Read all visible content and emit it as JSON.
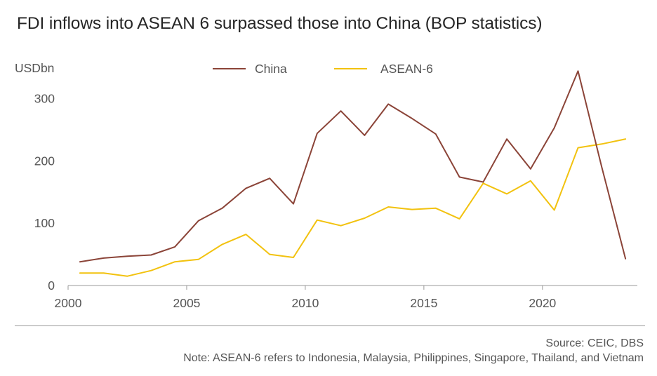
{
  "chart_data": {
    "type": "line",
    "title": "FDI inflows into ASEAN 6 surpassed those into China (BOP statistics)",
    "ylabel": "USDbn",
    "xlabel": "",
    "x": [
      2000,
      2001,
      2002,
      2003,
      2004,
      2005,
      2006,
      2007,
      2008,
      2009,
      2010,
      2011,
      2012,
      2013,
      2014,
      2015,
      2016,
      2017,
      2018,
      2019,
      2020,
      2021,
      2022,
      2023
    ],
    "x_ticks": [
      "2000",
      "2005",
      "2010",
      "2015",
      "2020"
    ],
    "y_ticks": [
      "0",
      "100",
      "200",
      "300"
    ],
    "ylim": [
      0,
      350
    ],
    "xlim": [
      2000,
      2023
    ],
    "grid": false,
    "legend": "top",
    "series": [
      {
        "name": "China",
        "color": "#8b4438",
        "values": [
          38,
          44,
          47,
          49,
          62,
          104,
          124,
          156,
          172,
          131,
          244,
          280,
          241,
          291,
          268,
          243,
          174,
          166,
          235,
          187,
          253,
          344,
          190,
          43
        ]
      },
      {
        "name": "ASEAN-6",
        "color": "#f2c20f",
        "values": [
          20,
          20,
          15,
          24,
          38,
          42,
          66,
          82,
          50,
          45,
          105,
          96,
          108,
          126,
          122,
          124,
          107,
          164,
          147,
          168,
          121,
          221,
          227,
          235
        ]
      }
    ]
  },
  "footer": {
    "source": "Source: CEIC, DBS",
    "note": "Note: ASEAN-6 refers to Indonesia, Malaysia, Philippines, Singapore, Thailand, and Vietnam"
  }
}
